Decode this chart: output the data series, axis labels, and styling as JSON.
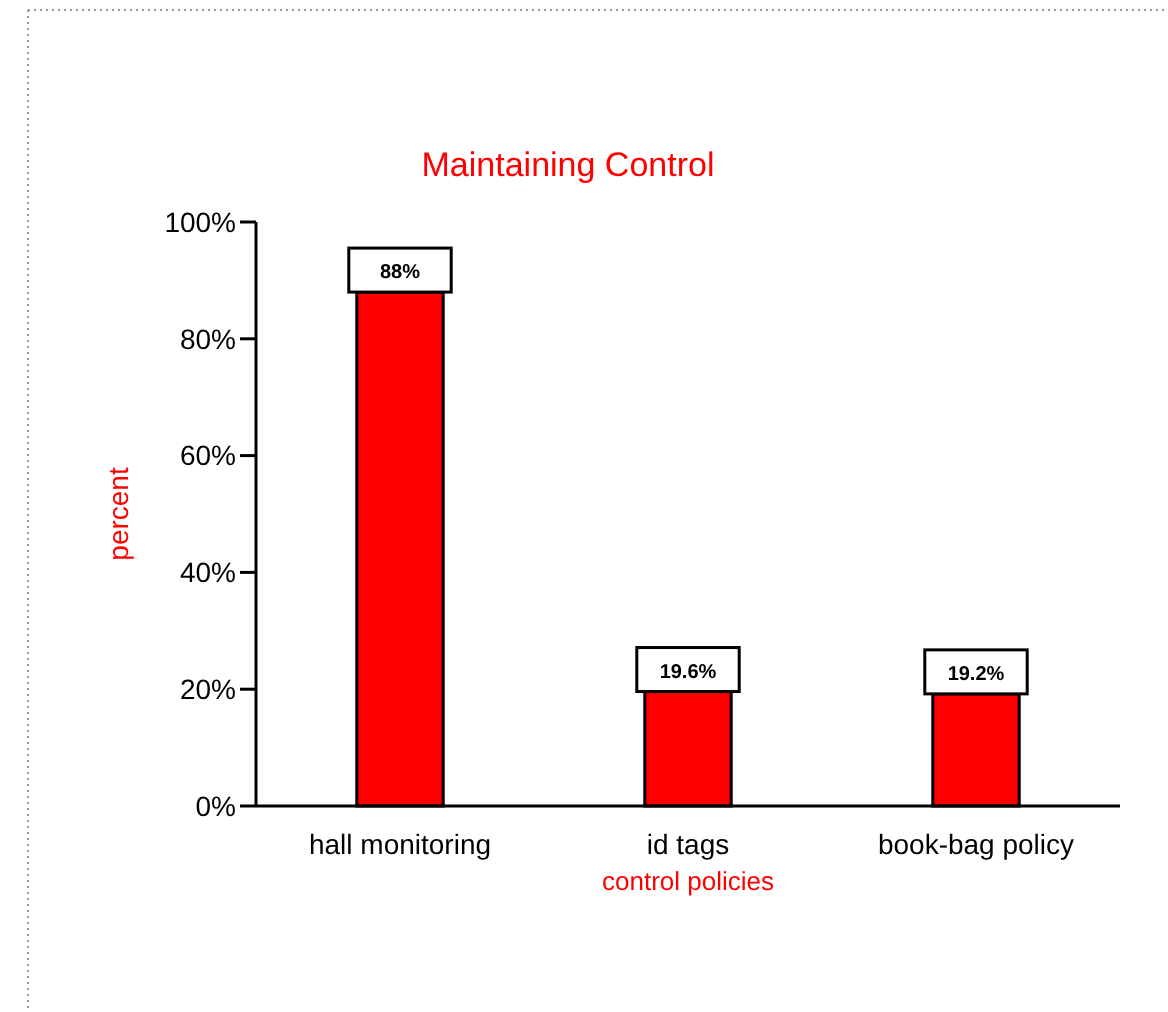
{
  "chart_data": {
    "type": "bar",
    "title": "Maintaining Control",
    "xlabel": "control policies",
    "ylabel": "percent",
    "categories": [
      "hall monitoring",
      "id tags",
      "book-bag policy"
    ],
    "values": [
      88,
      19.6,
      19.2
    ],
    "value_labels": [
      "88%",
      "19.6%",
      "19.2%"
    ],
    "color": "#ff0000",
    "ylim": [
      0,
      100
    ],
    "yticks": [
      {
        "value": 0,
        "label": "0%"
      },
      {
        "value": 20,
        "label": "20%"
      },
      {
        "value": 40,
        "label": "40%"
      },
      {
        "value": 60,
        "label": "60%"
      },
      {
        "value": 80,
        "label": "80%"
      },
      {
        "value": 100,
        "label": "100%"
      }
    ]
  }
}
